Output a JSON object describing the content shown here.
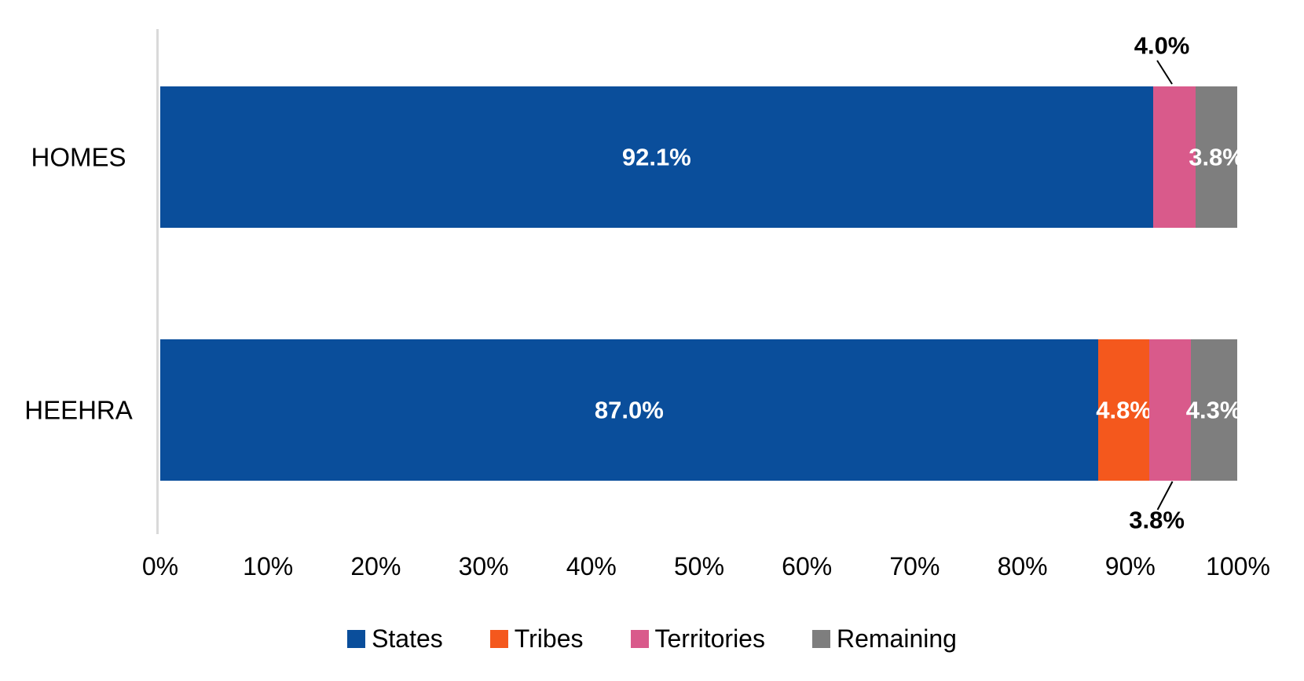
{
  "chart_data": {
    "type": "bar",
    "orientation": "horizontal",
    "stacked": true,
    "unit": "%",
    "title": "",
    "categories": [
      "HOMES",
      "HEEHRA"
    ],
    "series": [
      {
        "name": "States",
        "color": "#0A4E9B",
        "values": [
          92.1,
          87.0
        ]
      },
      {
        "name": "Tribes",
        "color": "#F4581D",
        "values": [
          0,
          4.8
        ]
      },
      {
        "name": "Territories",
        "color": "#D95A8B",
        "values": [
          4.0,
          3.8
        ]
      },
      {
        "name": "Remaining",
        "color": "#7E7E7E",
        "values": [
          3.8,
          4.3
        ]
      }
    ],
    "xlim": [
      0,
      100
    ],
    "x_ticks": [
      "0%",
      "10%",
      "20%",
      "30%",
      "40%",
      "50%",
      "60%",
      "70%",
      "80%",
      "90%",
      "100%"
    ],
    "grid": false,
    "legend_position": "bottom",
    "inside_labels": [
      {
        "category": "HOMES",
        "series": "States",
        "text": "92.1%"
      },
      {
        "category": "HOMES",
        "series": "Remaining",
        "text": "3.8%"
      },
      {
        "category": "HEEHRA",
        "series": "States",
        "text": "87.0%"
      },
      {
        "category": "HEEHRA",
        "series": "Tribes",
        "text": "4.8%"
      },
      {
        "category": "HEEHRA",
        "series": "Remaining",
        "text": "4.3%"
      }
    ],
    "callouts": [
      {
        "category": "HOMES",
        "series": "Territories",
        "text": "4.0%",
        "position": "above"
      },
      {
        "category": "HEEHRA",
        "series": "Territories",
        "text": "3.8%",
        "position": "below"
      }
    ],
    "colors": {
      "axis_line": "#D9D9D9",
      "label_inside": "#FFFFFF",
      "label_outside": "#000000"
    }
  }
}
